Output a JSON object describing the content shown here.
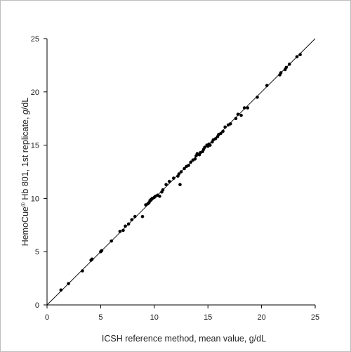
{
  "chart_data": {
    "type": "scatter",
    "xlabel": "ICSH reference method, mean value,  g/dL",
    "ylabel_parts": [
      "HemoCue",
      "®",
      " Hb 801, 1st replicate, ",
      "g",
      "/dL"
    ],
    "xlim": [
      0,
      25
    ],
    "ylim": [
      0,
      25
    ],
    "x_ticks": [
      0,
      5,
      10,
      15,
      20,
      25
    ],
    "y_ticks": [
      0,
      5,
      10,
      15,
      20,
      25
    ],
    "grid": false,
    "reference_line": {
      "x": [
        0,
        25
      ],
      "y": [
        0,
        25
      ]
    },
    "point_color": "#000000",
    "points": [
      [
        1.3,
        1.4
      ],
      [
        2.0,
        2.0
      ],
      [
        3.3,
        3.2
      ],
      [
        4.1,
        4.2
      ],
      [
        4.2,
        4.3
      ],
      [
        5.0,
        5.0
      ],
      [
        5.1,
        5.1
      ],
      [
        6.0,
        6.0
      ],
      [
        6.8,
        6.9
      ],
      [
        7.1,
        7.0
      ],
      [
        7.3,
        7.4
      ],
      [
        7.6,
        7.6
      ],
      [
        7.9,
        8.0
      ],
      [
        8.2,
        8.3
      ],
      [
        8.9,
        8.3
      ],
      [
        9.2,
        9.4
      ],
      [
        9.4,
        9.5
      ],
      [
        9.5,
        9.6
      ],
      [
        9.6,
        9.8
      ],
      [
        9.7,
        9.9
      ],
      [
        9.8,
        10.0
      ],
      [
        10.0,
        10.1
      ],
      [
        10.1,
        10.2
      ],
      [
        10.3,
        10.3
      ],
      [
        10.5,
        10.2
      ],
      [
        10.7,
        10.6
      ],
      [
        10.8,
        10.8
      ],
      [
        11.1,
        11.3
      ],
      [
        11.4,
        11.6
      ],
      [
        11.8,
        11.9
      ],
      [
        12.2,
        12.1
      ],
      [
        12.3,
        12.3
      ],
      [
        12.4,
        11.3
      ],
      [
        12.5,
        12.5
      ],
      [
        12.8,
        12.8
      ],
      [
        13.0,
        13.0
      ],
      [
        13.2,
        13.1
      ],
      [
        13.4,
        13.4
      ],
      [
        13.6,
        13.6
      ],
      [
        13.8,
        13.7
      ],
      [
        13.9,
        14.0
      ],
      [
        14.0,
        14.2
      ],
      [
        14.2,
        14.1
      ],
      [
        14.3,
        14.3
      ],
      [
        14.5,
        14.4
      ],
      [
        14.6,
        14.6
      ],
      [
        14.7,
        14.8
      ],
      [
        14.9,
        15.0
      ],
      [
        15.0,
        14.9
      ],
      [
        15.1,
        15.1
      ],
      [
        15.2,
        15.0
      ],
      [
        15.4,
        15.3
      ],
      [
        15.5,
        15.5
      ],
      [
        15.7,
        15.6
      ],
      [
        15.9,
        15.8
      ],
      [
        16.0,
        16.0
      ],
      [
        16.2,
        16.1
      ],
      [
        16.4,
        16.3
      ],
      [
        16.6,
        16.7
      ],
      [
        16.9,
        16.9
      ],
      [
        17.1,
        17.0
      ],
      [
        17.6,
        17.5
      ],
      [
        17.8,
        17.9
      ],
      [
        18.1,
        17.8
      ],
      [
        18.4,
        18.5
      ],
      [
        18.7,
        18.5
      ],
      [
        19.6,
        19.5
      ],
      [
        20.5,
        20.6
      ],
      [
        21.7,
        21.6
      ],
      [
        21.8,
        21.8
      ],
      [
        22.2,
        22.1
      ],
      [
        22.3,
        22.3
      ],
      [
        22.6,
        22.6
      ],
      [
        23.3,
        23.3
      ],
      [
        23.6,
        23.5
      ]
    ]
  }
}
